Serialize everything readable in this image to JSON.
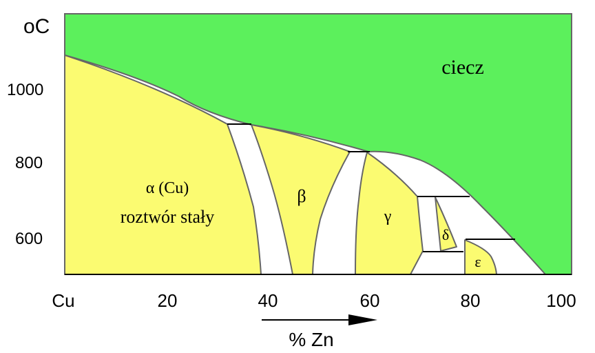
{
  "diagram": {
    "unit_label": "oC",
    "x_axis_label": "% Zn",
    "y_ticks": [
      "1000",
      "800",
      "600"
    ],
    "x_ticks": [
      "Cu",
      "20",
      "40",
      "60",
      "80",
      "100"
    ],
    "phase_labels": {
      "liquid": "ciecz",
      "alpha": "α (Cu)",
      "alpha_desc": "roztwór stały",
      "beta": "β",
      "gamma": "γ",
      "delta": "δ",
      "epsilon": "ε"
    },
    "colors": {
      "liquid": "#5cf05c",
      "solid_phase": "#fbfb71",
      "two_phase": "#ffffff",
      "boundary": "#666666"
    }
  }
}
